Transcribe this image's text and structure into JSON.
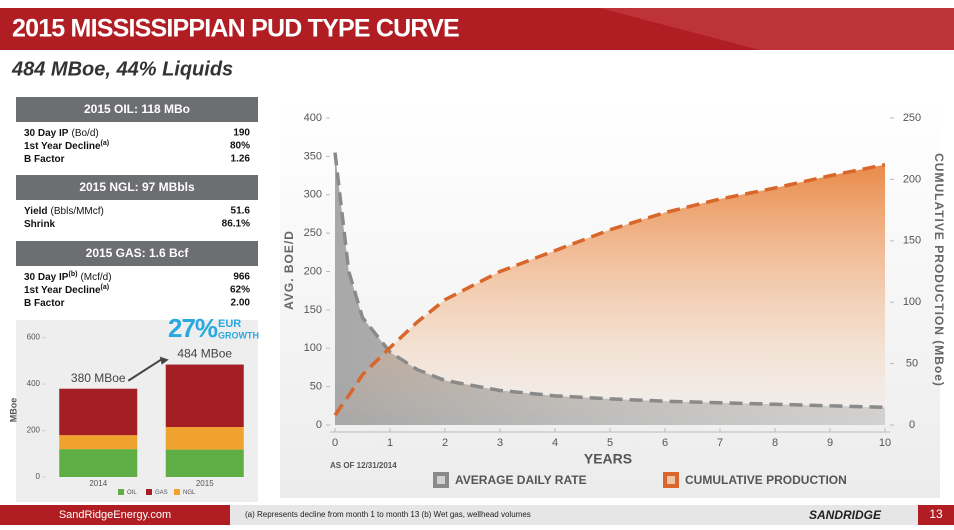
{
  "header": {
    "title": "2015 MISSISSIPPIAN PUD TYPE CURVE",
    "subtitle": "484 MBoe, 44% Liquids"
  },
  "panels": [
    {
      "title": "2015 OIL: 118 MBo",
      "rows": [
        {
          "label": "30 Day IP",
          "unit": "(Bo/d)",
          "value": "190"
        },
        {
          "label": "1st Year Decline",
          "sup": "(a)",
          "value": "80%"
        },
        {
          "label": "B Factor",
          "value": "1.26"
        }
      ]
    },
    {
      "title": "2015 NGL: 97 MBbls",
      "rows": [
        {
          "label": "Yield",
          "unit": "(Bbls/MMcf)",
          "value": "51.6"
        },
        {
          "label": "Shrink",
          "value": "86.1%"
        }
      ]
    },
    {
      "title": "2015 GAS: 1.6 Bcf",
      "rows": [
        {
          "label": "30 Day IP",
          "sup": "(b)",
          "unit": "(Mcf/d)",
          "value": "966"
        },
        {
          "label": "1st Year Decline",
          "sup": "(a)",
          "value": "62%"
        },
        {
          "label": "B Factor",
          "value": "2.00"
        }
      ]
    }
  ],
  "chart_data": [
    {
      "type": "line",
      "x": [
        0,
        0.25,
        0.5,
        1,
        1.5,
        2,
        3,
        4,
        5,
        6,
        7,
        8,
        9,
        10
      ],
      "series": [
        {
          "name": "AVERAGE DAILY RATE",
          "color": "#8a8a8a",
          "values": [
            355,
            200,
            140,
            95,
            72,
            58,
            45,
            38,
            34,
            31,
            29,
            27,
            25,
            23
          ]
        },
        {
          "name": "CUMULATIVE PRODUCTION",
          "color": "#d9662a",
          "axis": "y2",
          "values": [
            8,
            24,
            41,
            63,
            84,
            102,
            125,
            142,
            159,
            173,
            184,
            193,
            203,
            212
          ]
        }
      ],
      "xlim": [
        0,
        10
      ],
      "xticks": [
        0,
        1,
        2,
        3,
        4,
        5,
        6,
        7,
        8,
        9,
        10
      ],
      "ylim": [
        0,
        400
      ],
      "yticks": [
        0,
        50,
        100,
        150,
        200,
        250,
        300,
        350,
        400
      ],
      "y2lim": [
        0,
        250
      ],
      "y2ticks": [
        0,
        50,
        100,
        150,
        200,
        250
      ],
      "xlabel": "YEARS",
      "ylabel": "AVG. BOE/D",
      "y2label": "CUMULATIVE PRODUCTION (MBoe)",
      "annotation": "AS OF 12/31/2014",
      "grid": false
    },
    {
      "type": "bar",
      "stacked": true,
      "categories": [
        "2014",
        "2015"
      ],
      "series": [
        {
          "name": "OIL",
          "color": "#5fae45",
          "values": [
            120,
            118
          ]
        },
        {
          "name": "GAS",
          "color": "#a31f24",
          "values": [
            200,
            269
          ]
        },
        {
          "name": "NGL",
          "color": "#f0a22e",
          "values": [
            60,
            97
          ]
        }
      ],
      "stack_order": [
        0,
        2,
        1
      ],
      "ylim": [
        0,
        650
      ],
      "yticks": [
        0,
        200,
        400,
        600
      ],
      "ylabel": "MBoe",
      "total_labels": [
        "380 MBoe",
        "484 MBoe"
      ],
      "callout": {
        "value": "27%",
        "line1": "EUR",
        "line2": "GROWTH"
      }
    }
  ],
  "footer": {
    "website": "SandRidgeEnergy.com",
    "note": "(a) Represents decline from month 1 to month 13  (b) Wet gas, wellhead volumes",
    "logo": "SANDRIDGE",
    "page": "13"
  }
}
